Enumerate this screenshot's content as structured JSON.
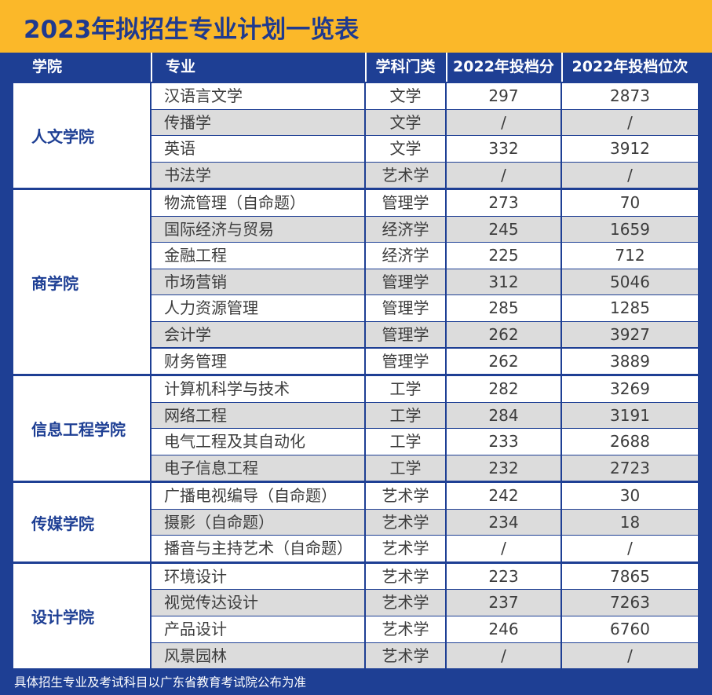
{
  "title": "2023年拟招生专业计划一览表",
  "headers": [
    "学院",
    "专业",
    "学科门类",
    "2022年投档分",
    "2022年投档位次"
  ],
  "departments": [
    {
      "name": "人文学院",
      "rows": [
        [
          "汉语言文学",
          "文学",
          "297",
          "2873"
        ],
        [
          "传播学",
          "文学",
          "/",
          "/"
        ],
        [
          "英语",
          "文学",
          "332",
          "3912"
        ],
        [
          "书法学",
          "艺术学",
          "/",
          "/"
        ]
      ]
    },
    {
      "name": "商学院",
      "rows": [
        [
          "物流管理（自命题）",
          "管理学",
          "273",
          "70"
        ],
        [
          "国际经济与贸易",
          "经济学",
          "245",
          "1659"
        ],
        [
          "金融工程",
          "经济学",
          "225",
          "712"
        ],
        [
          "市场营销",
          "管理学",
          "312",
          "5046"
        ],
        [
          "人力资源管理",
          "管理学",
          "285",
          "1285"
        ],
        [
          "会计学",
          "管理学",
          "262",
          "3927"
        ],
        [
          "财务管理",
          "管理学",
          "262",
          "3889"
        ]
      ]
    },
    {
      "name": "信息工程学院",
      "rows": [
        [
          "计算机科学与技术",
          "工学",
          "282",
          "3269"
        ],
        [
          "网络工程",
          "工学",
          "284",
          "3191"
        ],
        [
          "电气工程及其自动化",
          "工学",
          "233",
          "2688"
        ],
        [
          "电子信息工程",
          "工学",
          "232",
          "2723"
        ]
      ]
    },
    {
      "name": "传媒学院",
      "rows": [
        [
          "广播电视编导（自命题）",
          "艺术学",
          "242",
          "30"
        ],
        [
          "摄影（自命题）",
          "艺术学",
          "234",
          "18"
        ],
        [
          "播音与主持艺术（自命题）",
          "艺术学",
          "/",
          "/"
        ]
      ]
    },
    {
      "name": "设计学院",
      "rows": [
        [
          "环境设计",
          "艺术学",
          "223",
          "7865"
        ],
        [
          "视觉传达设计",
          "艺术学",
          "237",
          "7263"
        ],
        [
          "产品设计",
          "艺术学",
          "246",
          "6760"
        ],
        [
          "风景园林",
          "艺术学",
          "/",
          "/"
        ]
      ]
    }
  ],
  "footer": "具体招生专业及考试科目以广东省教育考试院公布为准",
  "colors": {
    "background": "#fbb829",
    "navy": "#1e3f94",
    "row_alt": "#dcdcdc",
    "row": "#ffffff"
  }
}
